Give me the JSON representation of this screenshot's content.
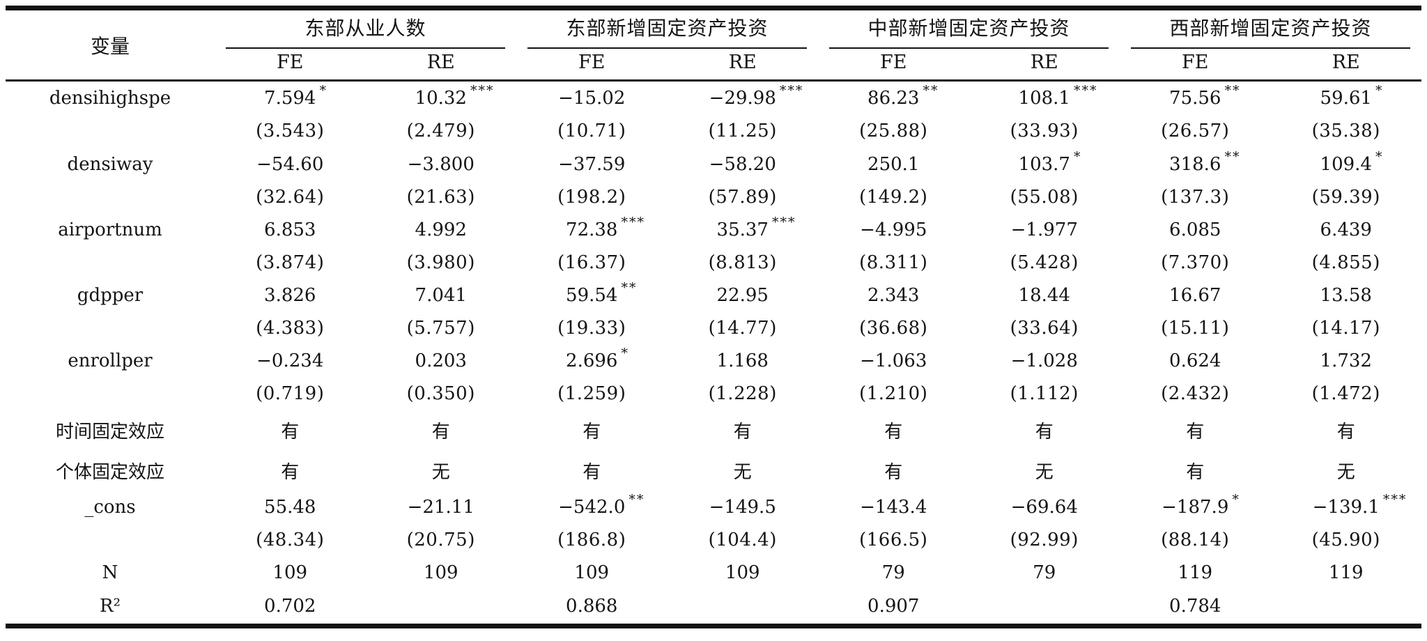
{
  "table": {
    "corner_label": "变量",
    "groups": [
      {
        "label": "东部从业人数",
        "cols": [
          "FE",
          "RE"
        ]
      },
      {
        "label": "东部新增固定资产投资",
        "cols": [
          "FE",
          "RE"
        ]
      },
      {
        "label": "中部新增固定资产投资",
        "cols": [
          "FE",
          "RE"
        ]
      },
      {
        "label": "西部新增固定资产投资",
        "cols": [
          "FE",
          "RE"
        ]
      }
    ],
    "rows": [
      {
        "type": "coef",
        "label": "densihighspe",
        "cells": [
          [
            "7.594",
            "*"
          ],
          [
            "10.32",
            "***"
          ],
          [
            "−15.02",
            ""
          ],
          [
            "−29.98",
            "***"
          ],
          [
            "86.23",
            "**"
          ],
          [
            "108.1",
            "***"
          ],
          [
            "75.56",
            "**"
          ],
          [
            "59.61",
            "*"
          ]
        ]
      },
      {
        "type": "se",
        "label": "",
        "cells": [
          [
            "(3.543)",
            ""
          ],
          [
            "(2.479)",
            ""
          ],
          [
            "(10.71)",
            ""
          ],
          [
            "(11.25)",
            ""
          ],
          [
            "(25.88)",
            ""
          ],
          [
            "(33.93)",
            ""
          ],
          [
            "(26.57)",
            ""
          ],
          [
            "(35.38)",
            ""
          ]
        ]
      },
      {
        "type": "coef",
        "label": "densiway",
        "cells": [
          [
            "−54.60",
            ""
          ],
          [
            "−3.800",
            ""
          ],
          [
            "−37.59",
            ""
          ],
          [
            "−58.20",
            ""
          ],
          [
            "250.1",
            ""
          ],
          [
            "103.7",
            "*"
          ],
          [
            "318.6",
            "**"
          ],
          [
            "109.4",
            "*"
          ]
        ]
      },
      {
        "type": "se",
        "label": "",
        "cells": [
          [
            "(32.64)",
            ""
          ],
          [
            "(21.63)",
            ""
          ],
          [
            "(198.2)",
            ""
          ],
          [
            "(57.89)",
            ""
          ],
          [
            "(149.2)",
            ""
          ],
          [
            "(55.08)",
            ""
          ],
          [
            "(137.3)",
            ""
          ],
          [
            "(59.39)",
            ""
          ]
        ]
      },
      {
        "type": "coef",
        "label": "airportnum",
        "cells": [
          [
            "6.853",
            ""
          ],
          [
            "4.992",
            ""
          ],
          [
            "72.38",
            "***"
          ],
          [
            "35.37",
            "***"
          ],
          [
            "−4.995",
            ""
          ],
          [
            "−1.977",
            ""
          ],
          [
            "6.085",
            ""
          ],
          [
            "6.439",
            ""
          ]
        ]
      },
      {
        "type": "se",
        "label": "",
        "cells": [
          [
            "(3.874)",
            ""
          ],
          [
            "(3.980)",
            ""
          ],
          [
            "(16.37)",
            ""
          ],
          [
            "(8.813)",
            ""
          ],
          [
            "(8.311)",
            ""
          ],
          [
            "(5.428)",
            ""
          ],
          [
            "(7.370)",
            ""
          ],
          [
            "(4.855)",
            ""
          ]
        ]
      },
      {
        "type": "coef",
        "label": "gdpper",
        "cells": [
          [
            "3.826",
            ""
          ],
          [
            "7.041",
            ""
          ],
          [
            "59.54",
            "**"
          ],
          [
            "22.95",
            ""
          ],
          [
            "2.343",
            ""
          ],
          [
            "18.44",
            ""
          ],
          [
            "16.67",
            ""
          ],
          [
            "13.58",
            ""
          ]
        ]
      },
      {
        "type": "se",
        "label": "",
        "cells": [
          [
            "(4.383)",
            ""
          ],
          [
            "(5.757)",
            ""
          ],
          [
            "(19.33)",
            ""
          ],
          [
            "(14.77)",
            ""
          ],
          [
            "(36.68)",
            ""
          ],
          [
            "(33.64)",
            ""
          ],
          [
            "(15.11)",
            ""
          ],
          [
            "(14.17)",
            ""
          ]
        ]
      },
      {
        "type": "coef",
        "label": "enrollper",
        "cells": [
          [
            "−0.234",
            ""
          ],
          [
            "0.203",
            ""
          ],
          [
            "2.696",
            "*"
          ],
          [
            "1.168",
            ""
          ],
          [
            "−1.063",
            ""
          ],
          [
            "−1.028",
            ""
          ],
          [
            "0.624",
            ""
          ],
          [
            "1.732",
            ""
          ]
        ]
      },
      {
        "type": "se",
        "label": "",
        "cells": [
          [
            "(0.719)",
            ""
          ],
          [
            "(0.350)",
            ""
          ],
          [
            "(1.259)",
            ""
          ],
          [
            "(1.228)",
            ""
          ],
          [
            "(1.210)",
            ""
          ],
          [
            "(1.112)",
            ""
          ],
          [
            "(2.432)",
            ""
          ],
          [
            "(1.472)",
            ""
          ]
        ]
      },
      {
        "type": "plain",
        "label": "时间固定效应",
        "cells": [
          [
            "有",
            ""
          ],
          [
            "有",
            ""
          ],
          [
            "有",
            ""
          ],
          [
            "有",
            ""
          ],
          [
            "有",
            ""
          ],
          [
            "有",
            ""
          ],
          [
            "有",
            ""
          ],
          [
            "有",
            ""
          ]
        ]
      },
      {
        "type": "plain",
        "label": "个体固定效应",
        "cells": [
          [
            "有",
            ""
          ],
          [
            "无",
            ""
          ],
          [
            "有",
            ""
          ],
          [
            "无",
            ""
          ],
          [
            "有",
            ""
          ],
          [
            "无",
            ""
          ],
          [
            "有",
            ""
          ],
          [
            "无",
            ""
          ]
        ]
      },
      {
        "type": "coef",
        "label": "_cons",
        "cells": [
          [
            "55.48",
            ""
          ],
          [
            "−21.11",
            ""
          ],
          [
            "−542.0",
            "**"
          ],
          [
            "−149.5",
            ""
          ],
          [
            "−143.4",
            ""
          ],
          [
            "−69.64",
            ""
          ],
          [
            "−187.9",
            "*"
          ],
          [
            "−139.1",
            "***"
          ]
        ]
      },
      {
        "type": "se",
        "label": "",
        "cells": [
          [
            "(48.34)",
            ""
          ],
          [
            "(20.75)",
            ""
          ],
          [
            "(186.8)",
            ""
          ],
          [
            "(104.4)",
            ""
          ],
          [
            "(166.5)",
            ""
          ],
          [
            "(92.99)",
            ""
          ],
          [
            "(88.14)",
            ""
          ],
          [
            "(45.90)",
            ""
          ]
        ]
      },
      {
        "type": "plain",
        "label": "N",
        "cells": [
          [
            "109",
            ""
          ],
          [
            "109",
            ""
          ],
          [
            "109",
            ""
          ],
          [
            "109",
            ""
          ],
          [
            "79",
            ""
          ],
          [
            "79",
            ""
          ],
          [
            "119",
            ""
          ],
          [
            "119",
            ""
          ]
        ]
      },
      {
        "type": "plain",
        "label": "R²",
        "cells": [
          [
            "0.702",
            ""
          ],
          [
            "",
            ""
          ],
          [
            "0.868",
            ""
          ],
          [
            "",
            ""
          ],
          [
            "0.907",
            ""
          ],
          [
            "",
            ""
          ],
          [
            "0.784",
            ""
          ],
          [
            "",
            ""
          ]
        ]
      }
    ]
  }
}
